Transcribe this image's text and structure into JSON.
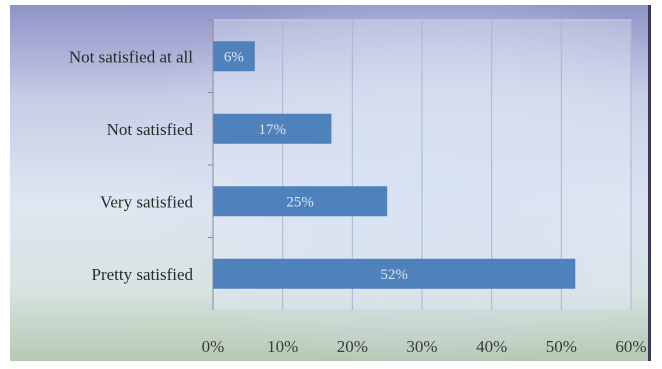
{
  "chart_data": {
    "type": "bar",
    "orientation": "horizontal",
    "categories": [
      "Not satisfied at all",
      "Not satisfied",
      "Very satisfied",
      "Pretty satisfied"
    ],
    "values": [
      6,
      17,
      25,
      52
    ],
    "data_labels": [
      "6%",
      "17%",
      "25%",
      "52%"
    ],
    "xlim": [
      0,
      60
    ],
    "xticks": [
      "0%",
      "10%",
      "20%",
      "30%",
      "40%",
      "50%",
      "60%"
    ],
    "grid": true,
    "bar_color": "#4f81bd",
    "title": "",
    "xlabel": "",
    "ylabel": ""
  }
}
